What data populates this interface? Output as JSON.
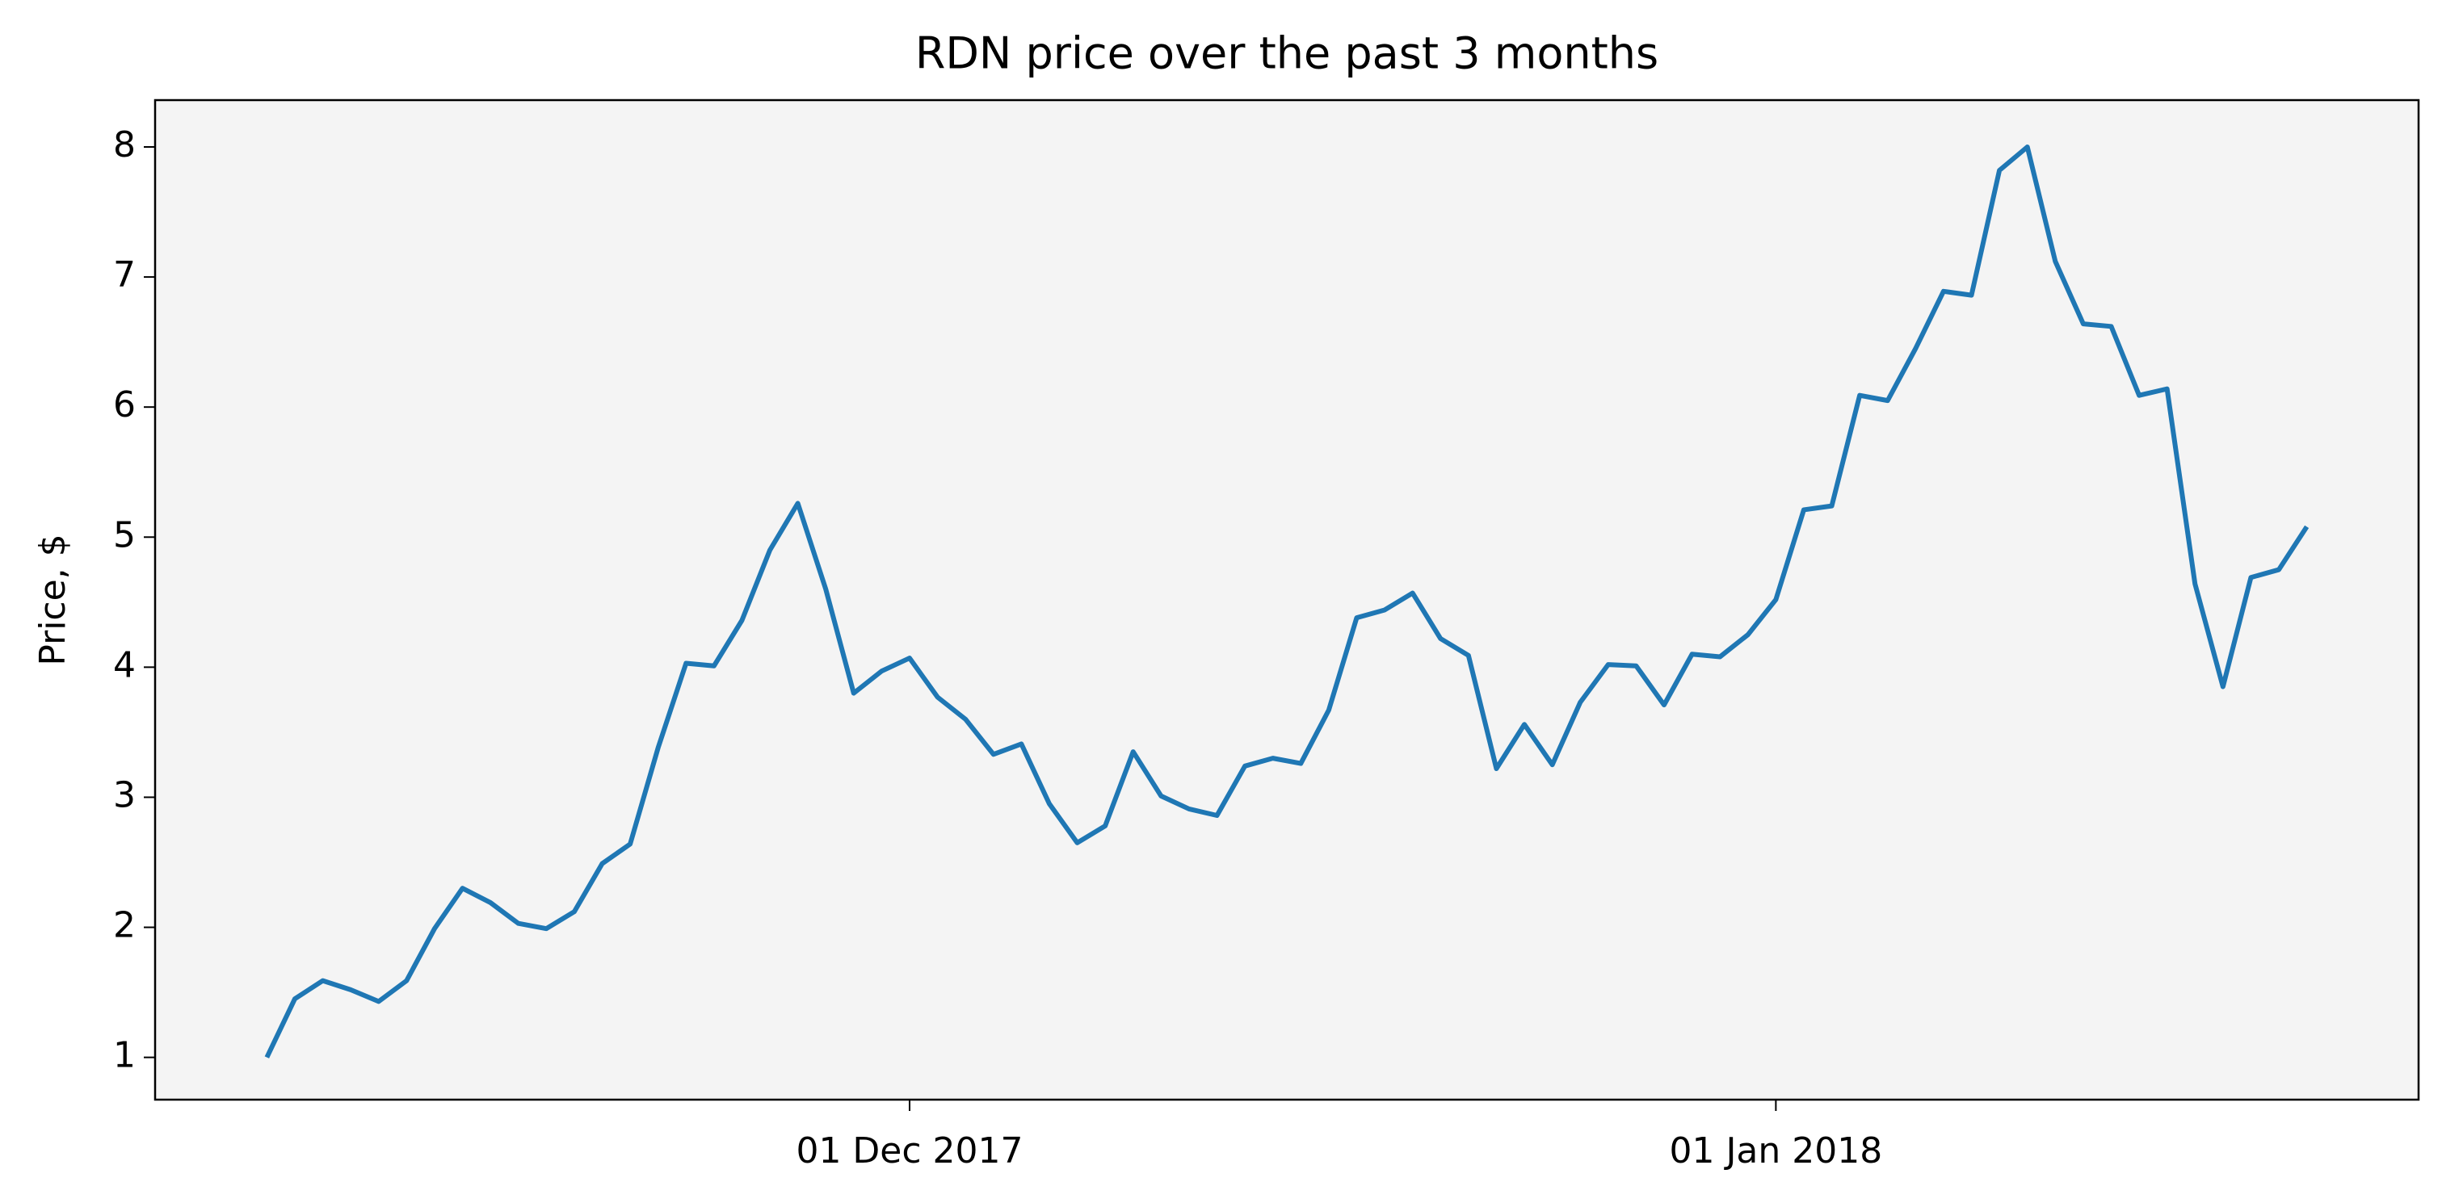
{
  "chart_data": {
    "type": "line",
    "title": "RDN price over the past 3 months",
    "y_label": "Price, $",
    "x": [
      "2017-11-08",
      "2017-11-09",
      "2017-11-10",
      "2017-11-11",
      "2017-11-12",
      "2017-11-13",
      "2017-11-14",
      "2017-11-15",
      "2017-11-16",
      "2017-11-17",
      "2017-11-18",
      "2017-11-19",
      "2017-11-20",
      "2017-11-21",
      "2017-11-22",
      "2017-11-23",
      "2017-11-24",
      "2017-11-25",
      "2017-11-26",
      "2017-11-27",
      "2017-11-28",
      "2017-11-29",
      "2017-11-30",
      "2017-12-01",
      "2017-12-02",
      "2017-12-03",
      "2017-12-04",
      "2017-12-05",
      "2017-12-06",
      "2017-12-07",
      "2017-12-08",
      "2017-12-09",
      "2017-12-10",
      "2017-12-11",
      "2017-12-12",
      "2017-12-13",
      "2017-12-14",
      "2017-12-15",
      "2017-12-16",
      "2017-12-17",
      "2017-12-18",
      "2017-12-19",
      "2017-12-20",
      "2017-12-21",
      "2017-12-22",
      "2017-12-23",
      "2017-12-24",
      "2017-12-25",
      "2017-12-26",
      "2017-12-27",
      "2017-12-28",
      "2017-12-29",
      "2017-12-30",
      "2017-12-31",
      "2018-01-01",
      "2018-01-02",
      "2018-01-03",
      "2018-01-04",
      "2018-01-05",
      "2018-01-06",
      "2018-01-07",
      "2018-01-08",
      "2018-01-09",
      "2018-01-10",
      "2018-01-11",
      "2018-01-12",
      "2018-01-13",
      "2018-01-14",
      "2018-01-15",
      "2018-01-16",
      "2018-01-17",
      "2018-01-18",
      "2018-01-19",
      "2018-01-20"
    ],
    "series": [
      {
        "name": "RDN",
        "color": "#1f77b4",
        "values": [
          1.0,
          1.45,
          1.59,
          1.52,
          1.43,
          1.59,
          1.99,
          2.3,
          2.19,
          2.03,
          1.99,
          2.12,
          2.49,
          2.64,
          3.38,
          4.03,
          4.01,
          4.36,
          4.9,
          5.26,
          4.6,
          3.8,
          3.97,
          4.07,
          3.77,
          3.6,
          3.33,
          3.41,
          2.95,
          2.65,
          2.78,
          3.35,
          3.01,
          2.91,
          2.86,
          3.24,
          3.3,
          3.26,
          3.67,
          4.38,
          4.44,
          4.57,
          4.22,
          4.09,
          3.22,
          3.56,
          3.25,
          3.73,
          4.02,
          4.01,
          3.71,
          4.1,
          4.08,
          4.25,
          4.52,
          5.21,
          5.24,
          6.09,
          6.05,
          6.45,
          6.89,
          6.86,
          7.82,
          8.0,
          7.12,
          6.64,
          6.62,
          6.09,
          6.14,
          4.64,
          3.85,
          4.69,
          4.75,
          5.08
        ]
      }
    ],
    "xlim": [
      "2017-11-04",
      "2018-01-24"
    ],
    "xticks": [
      {
        "value": "2017-12-01",
        "label": "01 Dec 2017"
      },
      {
        "value": "2018-01-01",
        "label": "01 Jan 2018"
      }
    ],
    "ylim": [
      0.675,
      8.36
    ],
    "yticks": [
      1,
      2,
      3,
      4,
      5,
      6,
      7,
      8
    ],
    "plot_background": "#f4f4f4"
  }
}
